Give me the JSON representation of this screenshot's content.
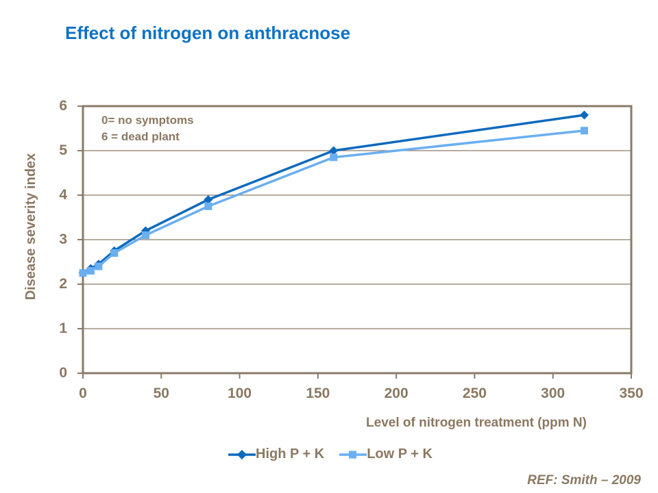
{
  "title": {
    "text": "Effect of nitrogen on anthracnose",
    "color": "#0E72C6"
  },
  "annotation": {
    "line1": "0= no symptoms",
    "line2": "6 = dead plant"
  },
  "footer": {
    "ref": "REF: Smith – 2009"
  },
  "colors": {
    "title_blue": "#0E72C6",
    "axis_text_brown": "#8A7862",
    "axis_line_brown": "#8A7A68",
    "high_series_blue": "#0D6ABD",
    "low_series_blue": "#6AAFF0",
    "plot_background": "#FFFFFF"
  },
  "chart_data": {
    "type": "line",
    "title": "Effect of nitrogen on anthracnose",
    "xlabel": "Level of nitrogen treatment (ppm N)",
    "ylabel": "Disease severity index",
    "x": [
      0,
      5,
      10,
      20,
      40,
      80,
      160,
      320
    ],
    "series": [
      {
        "name": "High P + K",
        "marker": "diamond",
        "color": "#0D6ABD",
        "values": [
          2.25,
          2.35,
          2.45,
          2.75,
          3.2,
          3.9,
          5.0,
          5.8
        ]
      },
      {
        "name": "Low P + K",
        "marker": "square",
        "color": "#6AAFF0",
        "values": [
          2.25,
          2.3,
          2.4,
          2.7,
          3.1,
          3.75,
          4.85,
          5.45
        ]
      }
    ],
    "xlim": [
      0,
      350
    ],
    "ylim": [
      0,
      6
    ],
    "x_ticks": [
      0,
      50,
      100,
      150,
      200,
      250,
      300,
      350
    ],
    "y_ticks": [
      0,
      1,
      2,
      3,
      4,
      5,
      6
    ],
    "grid": "horizontal",
    "legend_position": "bottom"
  }
}
